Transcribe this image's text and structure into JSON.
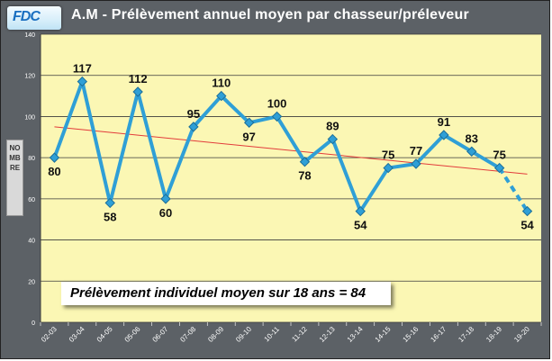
{
  "header": {
    "logo_text": "FDC",
    "title": "A.M - Prélèvement annuel moyen par chasseur/préleveur"
  },
  "colors": {
    "frame": "#5c6166",
    "plot_background": "#fbf7b4",
    "series_line": "#2f9fd6",
    "trend_line": "#e23b3b"
  },
  "chart_data": {
    "type": "line",
    "title": "A.M - Prélèvement annuel moyen par chasseur/préleveur",
    "xlabel": "",
    "ylabel": "NOMBRE",
    "ylim": [
      0,
      140
    ],
    "yticks": [
      0,
      20,
      40,
      60,
      80,
      100,
      120,
      140
    ],
    "grid": true,
    "categories": [
      "02-03",
      "03-04",
      "04-05",
      "05-06",
      "06-07",
      "07-08",
      "08-09",
      "09-10",
      "10-11",
      "11-12",
      "12-13",
      "13-14",
      "14-15",
      "15-16",
      "16-17",
      "17-18",
      "18-19",
      "19-20"
    ],
    "series": [
      {
        "values": [
          80,
          117,
          58,
          112,
          60,
          95,
          110,
          97,
          100,
          78,
          89,
          54,
          75,
          77,
          91,
          83,
          75,
          54
        ],
        "data_labels": [
          "80",
          "117",
          "58",
          "112",
          "60",
          "95",
          "110",
          "97",
          "100",
          "78",
          "89",
          "54",
          "75",
          "77",
          "91",
          "83",
          "75",
          "54"
        ],
        "dashed_last_segment": true
      }
    ],
    "trendline": {
      "type": "linear",
      "start": 95,
      "end": 72
    },
    "annotation": "Prélèvement individuel moyen sur 18 ans = 84"
  }
}
